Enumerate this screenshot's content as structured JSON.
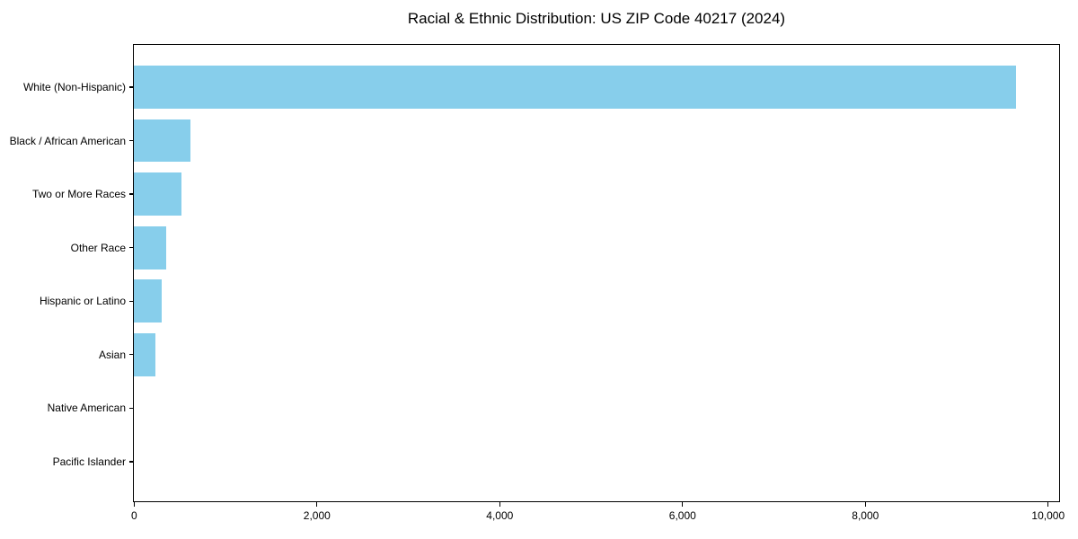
{
  "chart_data": {
    "type": "bar",
    "orientation": "horizontal",
    "title": "Racial & Ethnic Distribution: US ZIP Code 40217 (2024)",
    "categories": [
      "White (Non-Hispanic)",
      "Black / African American",
      "Two or More Races",
      "Other Race",
      "Hispanic or Latino",
      "Asian",
      "Native American",
      "Pacific Islander"
    ],
    "values": [
      9650,
      620,
      520,
      350,
      300,
      230,
      0,
      0
    ],
    "xlabel": "",
    "ylabel": "",
    "xlim": [
      0,
      10117
    ],
    "xticks": [
      0,
      2000,
      4000,
      6000,
      8000,
      10000
    ],
    "xtick_labels": [
      "0",
      "2,000",
      "4,000",
      "6,000",
      "8,000",
      "10,000"
    ],
    "bar_color": "#87CEEB",
    "axis_color": "#000000",
    "text_color": "#000000",
    "grid": false,
    "legend_position": "none"
  }
}
